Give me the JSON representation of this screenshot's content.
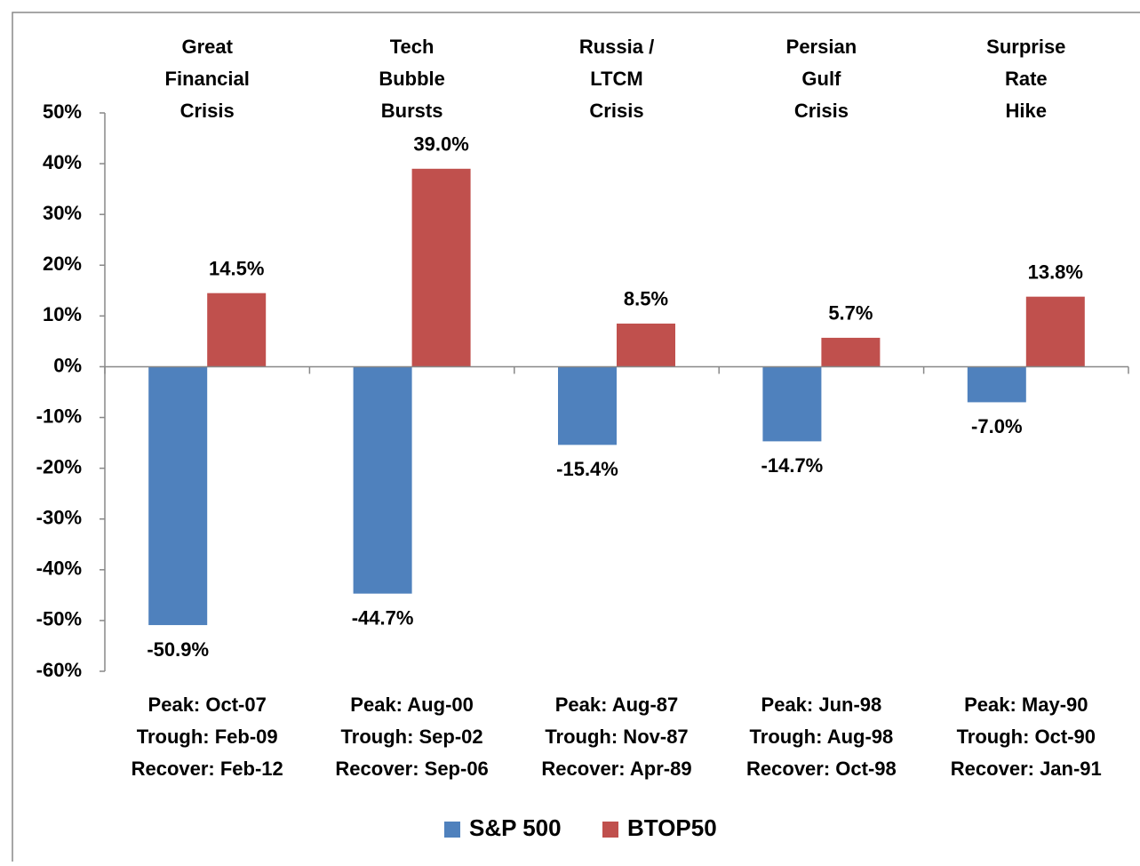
{
  "chart_data": {
    "type": "bar",
    "events": [
      [
        "Great",
        "Financial",
        "Crisis"
      ],
      [
        "Tech",
        "Bubble",
        "Bursts"
      ],
      [
        "Russia /",
        "LTCM",
        "Crisis"
      ],
      [
        "Persian",
        "Gulf",
        "Crisis"
      ],
      [
        "Surprise",
        "Rate",
        "Hike"
      ]
    ],
    "categories": [
      [
        "Peak: Oct-07",
        "Trough: Feb-09",
        "Recover: Feb-12"
      ],
      [
        "Peak: Aug-00",
        "Trough: Sep-02",
        "Recover: Sep-06"
      ],
      [
        "Peak: Aug-87",
        "Trough: Nov-87",
        "Recover: Apr-89"
      ],
      [
        "Peak: Jun-98",
        "Trough: Aug-98",
        "Recover: Oct-98"
      ],
      [
        "Peak: May-90",
        "Trough: Oct-90",
        "Recover: Jan-91"
      ]
    ],
    "series": [
      {
        "name": "S&P 500",
        "color": "#4f81bd",
        "values": [
          -50.9,
          -44.7,
          -15.4,
          -14.7,
          -7.0
        ],
        "value_labels": [
          "-50.9%",
          "-44.7%",
          "-15.4%",
          "-14.7%",
          "-7.0%"
        ]
      },
      {
        "name": "BTOP50",
        "color": "#c0504d",
        "values": [
          14.5,
          39.0,
          8.5,
          5.7,
          13.8
        ],
        "value_labels": [
          "14.5%",
          "39.0%",
          "8.5%",
          "5.7%",
          "13.8%"
        ]
      }
    ],
    "ylim": [
      -60,
      50
    ],
    "yticks": [
      {
        "value": 50,
        "label": "50%"
      },
      {
        "value": 40,
        "label": "40%"
      },
      {
        "value": 30,
        "label": "30%"
      },
      {
        "value": 20,
        "label": "20%"
      },
      {
        "value": 10,
        "label": "10%"
      },
      {
        "value": 0,
        "label": "0%"
      },
      {
        "value": -10,
        "label": "-10%"
      },
      {
        "value": -20,
        "label": "-20%"
      },
      {
        "value": -30,
        "label": "-30%"
      },
      {
        "value": -40,
        "label": "-40%"
      },
      {
        "value": -50,
        "label": "-50%"
      },
      {
        "value": -60,
        "label": "-60%"
      }
    ],
    "grid": false,
    "legend": "bottom"
  }
}
